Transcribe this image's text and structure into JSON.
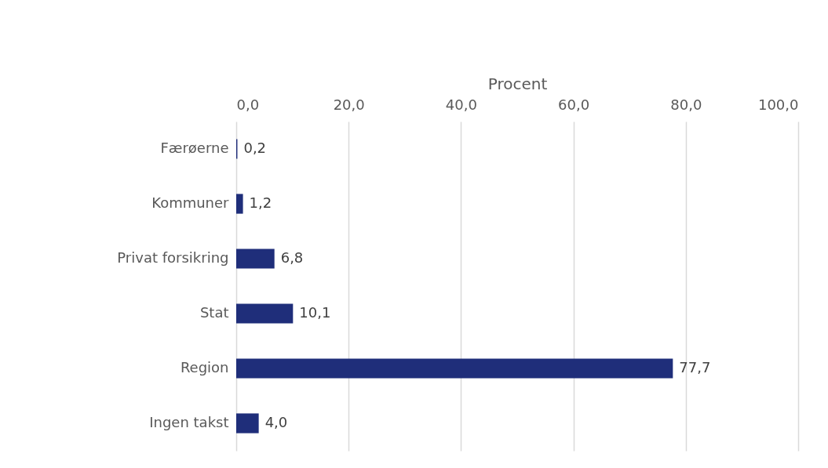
{
  "chart_data": {
    "type": "bar",
    "orientation": "horizontal",
    "xlabel": "Procent",
    "categories": [
      "Færøerne",
      "Kommuner",
      "Privat forsikring",
      "Stat",
      "Region",
      "Ingen takst"
    ],
    "values": [
      0.2,
      1.2,
      6.8,
      10.1,
      77.7,
      4.0
    ],
    "value_labels": [
      "0,2",
      "1,2",
      "6,8",
      "10,1",
      "77,7",
      "4,0"
    ],
    "color": "#1f2e7a",
    "xlim": [
      0,
      100
    ],
    "xticks": [
      {
        "value": 0,
        "label": "0,0"
      },
      {
        "value": 20,
        "label": "20,0"
      },
      {
        "value": 40,
        "label": "40,0"
      },
      {
        "value": 60,
        "label": "60,0"
      },
      {
        "value": 80,
        "label": "80,0"
      },
      {
        "value": 100,
        "label": "100,0"
      }
    ],
    "grid": "x"
  }
}
